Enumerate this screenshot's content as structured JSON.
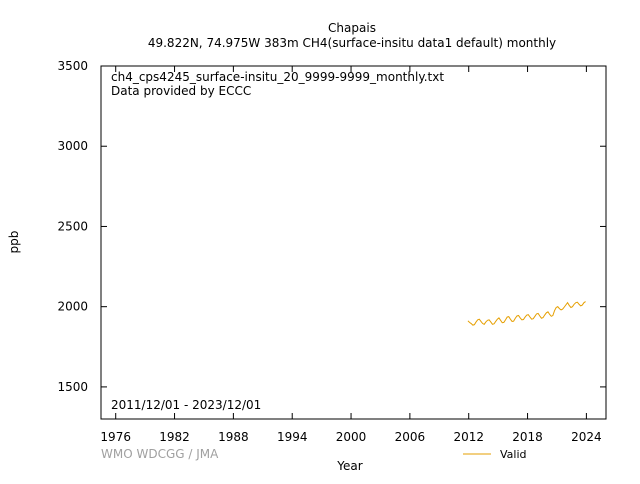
{
  "chart_data": {
    "type": "line",
    "title": "Chapais",
    "subtitle": "49.822N, 74.975W 383m    CH4(surface-insitu data1 default) monthly",
    "xlabel": "Year",
    "ylabel": "ppb",
    "xlim": [
      1974.5,
      2026
    ],
    "ylim": [
      1300,
      3500
    ],
    "xticks": [
      1976,
      1982,
      1988,
      1994,
      2000,
      2006,
      2012,
      2018,
      2024
    ],
    "yticks": [
      1500,
      2000,
      2500,
      3000,
      3500
    ],
    "grid": false,
    "annotations": {
      "file": "ch4_cps4245_surface-insitu_20_9999-9999_monthly.txt",
      "provider": "Data provided by ECCC",
      "period": "2011/12/01 - 2023/12/01",
      "credit": "WMO WDCGG / JMA"
    },
    "legend": {
      "position": "bottom-right",
      "entries": [
        "Valid"
      ]
    },
    "series": [
      {
        "name": "Valid",
        "color": "#e69f00",
        "points": [
          [
            2011.92,
            1912
          ],
          [
            2012.08,
            1902
          ],
          [
            2012.25,
            1895
          ],
          [
            2012.42,
            1885
          ],
          [
            2012.58,
            1888
          ],
          [
            2012.75,
            1905
          ],
          [
            2012.92,
            1918
          ],
          [
            2013.08,
            1922
          ],
          [
            2013.25,
            1908
          ],
          [
            2013.42,
            1895
          ],
          [
            2013.58,
            1890
          ],
          [
            2013.75,
            1905
          ],
          [
            2013.92,
            1915
          ],
          [
            2014.08,
            1918
          ],
          [
            2014.25,
            1905
          ],
          [
            2014.42,
            1890
          ],
          [
            2014.58,
            1893
          ],
          [
            2014.75,
            1908
          ],
          [
            2014.92,
            1922
          ],
          [
            2015.08,
            1930
          ],
          [
            2015.25,
            1915
          ],
          [
            2015.42,
            1900
          ],
          [
            2015.58,
            1902
          ],
          [
            2015.75,
            1918
          ],
          [
            2015.92,
            1935
          ],
          [
            2016.08,
            1938
          ],
          [
            2016.25,
            1922
          ],
          [
            2016.42,
            1908
          ],
          [
            2016.58,
            1910
          ],
          [
            2016.75,
            1928
          ],
          [
            2016.92,
            1942
          ],
          [
            2017.08,
            1945
          ],
          [
            2017.25,
            1930
          ],
          [
            2017.42,
            1918
          ],
          [
            2017.58,
            1920
          ],
          [
            2017.75,
            1935
          ],
          [
            2017.92,
            1948
          ],
          [
            2018.08,
            1950
          ],
          [
            2018.25,
            1935
          ],
          [
            2018.42,
            1922
          ],
          [
            2018.58,
            1925
          ],
          [
            2018.75,
            1940
          ],
          [
            2018.92,
            1955
          ],
          [
            2019.08,
            1958
          ],
          [
            2019.25,
            1942
          ],
          [
            2019.42,
            1928
          ],
          [
            2019.58,
            1932
          ],
          [
            2019.75,
            1948
          ],
          [
            2019.92,
            1962
          ],
          [
            2020.08,
            1968
          ],
          [
            2020.25,
            1952
          ],
          [
            2020.42,
            1940
          ],
          [
            2020.58,
            1945
          ],
          [
            2020.75,
            1975
          ],
          [
            2020.92,
            1995
          ],
          [
            2021.08,
            2000
          ],
          [
            2021.25,
            1988
          ],
          [
            2021.42,
            1980
          ],
          [
            2021.58,
            1985
          ],
          [
            2021.75,
            1998
          ],
          [
            2021.92,
            2012
          ],
          [
            2022.08,
            2025
          ],
          [
            2022.25,
            2008
          ],
          [
            2022.42,
            1995
          ],
          [
            2022.58,
            2000
          ],
          [
            2022.75,
            2015
          ],
          [
            2022.92,
            2025
          ],
          [
            2023.08,
            2028
          ],
          [
            2023.25,
            2015
          ],
          [
            2023.42,
            2005
          ],
          [
            2023.58,
            2010
          ],
          [
            2023.75,
            2025
          ],
          [
            2023.92,
            2032
          ]
        ]
      }
    ]
  }
}
